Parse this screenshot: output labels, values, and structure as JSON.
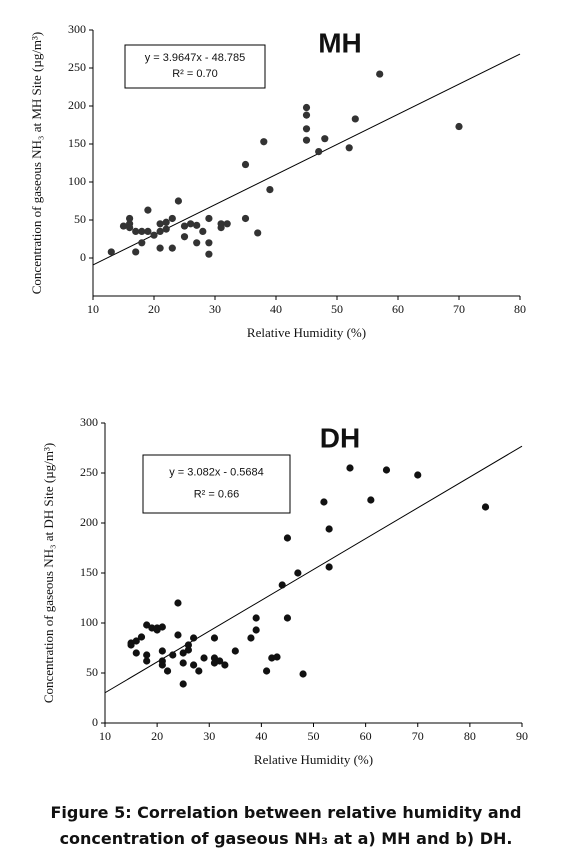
{
  "chart_data": [
    {
      "type": "scatter",
      "title": "MH",
      "x_label": "Relative Humidity (%)",
      "y_label": "Concentration of gaseous NH₃ at MH Site (µg/m³)",
      "equation": "y = 3.9647x - 48.785",
      "r_squared": "R² = 0.70",
      "trend": {
        "slope": 3.9647,
        "intercept": -48.785
      },
      "xlim": [
        10,
        80
      ],
      "ylim": [
        -50,
        300
      ],
      "xticks": [
        10,
        20,
        30,
        40,
        50,
        60,
        70,
        80
      ],
      "yticks": [
        0,
        50,
        100,
        150,
        200,
        250,
        300
      ],
      "color": "#333333",
      "x": [
        13,
        15,
        16,
        16,
        16,
        17,
        17,
        18,
        18,
        19,
        19,
        20,
        21,
        21,
        21,
        22,
        22,
        23,
        23,
        24,
        25,
        25,
        26,
        27,
        27,
        28,
        29,
        29,
        29,
        31,
        31,
        32,
        35,
        35,
        37,
        38,
        39,
        45,
        45,
        45,
        45,
        47,
        48,
        52,
        53,
        57,
        70
      ],
      "y": [
        8,
        42,
        45,
        52,
        40,
        35,
        8,
        20,
        35,
        63,
        35,
        30,
        45,
        13,
        35,
        47,
        38,
        52,
        13,
        75,
        28,
        42,
        45,
        20,
        43,
        35,
        52,
        20,
        5,
        45,
        40,
        45,
        52,
        123,
        33,
        153,
        90,
        198,
        188,
        170,
        155,
        140,
        157,
        145,
        183,
        242,
        173
      ]
    },
    {
      "type": "scatter",
      "title": "DH",
      "x_label": "Relative Humidity (%)",
      "y_label": "Concentration of gaseous NH₃ at DH Site (µg/m³)",
      "equation": "y = 3.082x - 0.5684",
      "r_squared": "R² = 0.66",
      "trend": {
        "slope": 3.082,
        "intercept": -0.5684
      },
      "xlim": [
        10,
        90
      ],
      "ylim": [
        0,
        300
      ],
      "xticks": [
        10,
        20,
        30,
        40,
        50,
        60,
        70,
        80,
        90
      ],
      "yticks": [
        0,
        50,
        100,
        150,
        200,
        250,
        300
      ],
      "color": "#111111",
      "x": [
        15,
        15,
        16,
        16,
        17,
        18,
        18,
        18,
        19,
        20,
        20,
        21,
        21,
        21,
        21,
        22,
        23,
        24,
        24,
        25,
        25,
        25,
        26,
        26,
        27,
        27,
        28,
        29,
        31,
        31,
        31,
        32,
        33,
        35,
        38,
        39,
        39,
        41,
        42,
        43,
        44,
        45,
        45,
        47,
        48,
        52,
        53,
        53,
        57,
        61,
        64,
        70,
        83
      ],
      "y": [
        80,
        78,
        70,
        82,
        86,
        98,
        68,
        62,
        95,
        93,
        95,
        96,
        72,
        62,
        58,
        52,
        68,
        120,
        88,
        70,
        60,
        39,
        73,
        78,
        85,
        58,
        52,
        65,
        85,
        65,
        60,
        62,
        58,
        72,
        85,
        105,
        93,
        52,
        65,
        66,
        138,
        185,
        105,
        150,
        49,
        221,
        194,
        156,
        255,
        223,
        253,
        248,
        216
      ]
    }
  ],
  "caption": "Figure 5: Correlation between relative humidity and concentration of gaseous NH₃ at a) MH and b) DH."
}
